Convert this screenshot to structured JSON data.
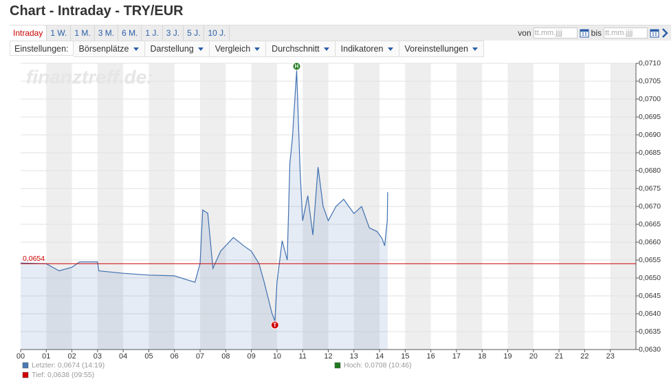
{
  "header": {
    "title": "Chart - Intraday - TRY/EUR"
  },
  "tabs": [
    "Intraday",
    "1 W.",
    "1 M.",
    "3 M.",
    "6 M.",
    "1 J.",
    "3 J.",
    "5 J.",
    "10 J."
  ],
  "date_range": {
    "from_label": "von",
    "from_placeholder": "tt.mm.jjjj",
    "to_label": "bis",
    "to_placeholder": "tt.mm.jjjj"
  },
  "settings": {
    "label": "Einstellungen:",
    "menus": [
      "Börsenplätze",
      "Darstellung",
      "Vergleich",
      "Durchschnitt",
      "Indikatoren",
      "Voreinstellungen"
    ]
  },
  "chart_data": {
    "type": "line",
    "watermark": "finanztreff.de:",
    "x": [
      0,
      1,
      1.5,
      2,
      2.3,
      3,
      3.05,
      4,
      5,
      6,
      6.8,
      7,
      7.1,
      7.3,
      7.5,
      7.8,
      8.3,
      8.7,
      9,
      9.3,
      9.5,
      9.8,
      9.917,
      10,
      10.2,
      10.4,
      10.5,
      10.6,
      10.767,
      10.9,
      11,
      11.2,
      11.4,
      11.6,
      11.8,
      12,
      12.3,
      12.6,
      13,
      13.3,
      13.6,
      13.9,
      14.1,
      14.2,
      14.3,
      14.317
    ],
    "series": [
      {
        "color": "#3f70b0",
        "values": [
          0.06542,
          0.0654,
          0.0652,
          0.0653,
          0.06545,
          0.06545,
          0.0652,
          0.06513,
          0.06508,
          0.06506,
          0.06488,
          0.0654,
          0.0669,
          0.06681,
          0.06527,
          0.06575,
          0.06613,
          0.0659,
          0.06575,
          0.0654,
          0.06488,
          0.06402,
          0.0638,
          0.06488,
          0.06604,
          0.0655,
          0.0682,
          0.0689,
          0.0708,
          0.068,
          0.0666,
          0.0673,
          0.0662,
          0.0681,
          0.067,
          0.0666,
          0.067,
          0.0672,
          0.0668,
          0.067,
          0.0664,
          0.0663,
          0.0661,
          0.0659,
          0.0666,
          0.0674
        ]
      }
    ],
    "xlim": [
      0,
      24
    ],
    "xticks": [
      {
        "value": 0,
        "label": "00"
      },
      {
        "value": 1,
        "label": "01"
      },
      {
        "value": 2,
        "label": "02"
      },
      {
        "value": 3,
        "label": "03"
      },
      {
        "value": 4,
        "label": "04"
      },
      {
        "value": 5,
        "label": "05"
      },
      {
        "value": 6,
        "label": "06"
      },
      {
        "value": 7,
        "label": "07"
      },
      {
        "value": 8,
        "label": "08"
      },
      {
        "value": 9,
        "label": "09"
      },
      10,
      11,
      12,
      13,
      14,
      15,
      16,
      17,
      18,
      19,
      20,
      21,
      22,
      23
    ],
    "ylim": [
      0.063,
      0.071
    ],
    "yticks": [
      {
        "value": 0.063,
        "label": "0,0630"
      },
      {
        "value": 0.0635,
        "label": "0,0635"
      },
      {
        "value": 0.064,
        "label": "0,0640"
      },
      {
        "value": 0.0645,
        "label": "0,0645"
      },
      {
        "value": 0.065,
        "label": "0,0650"
      },
      {
        "value": 0.0655,
        "label": "0,0655"
      },
      {
        "value": 0.066,
        "label": "0,0660"
      },
      {
        "value": 0.0665,
        "label": "0,0665"
      },
      {
        "value": 0.067,
        "label": "0,0670"
      },
      {
        "value": 0.0675,
        "label": "0,0675"
      },
      {
        "value": 0.068,
        "label": "0,0680"
      },
      {
        "value": 0.0685,
        "label": "0,0685"
      },
      {
        "value": 0.069,
        "label": "0,0690"
      },
      {
        "value": 0.0695,
        "label": "0,0695"
      },
      {
        "value": 0.07,
        "label": "0,0700"
      },
      {
        "value": 0.0705,
        "label": "0,0705"
      },
      {
        "value": 0.071,
        "label": "0,0710"
      }
    ],
    "grid": true,
    "reference_line": {
      "value": 0.0654,
      "label": "0,0654",
      "color": "#d00000"
    },
    "markers": [
      {
        "label": "H",
        "x": 10.767,
        "value": 0.0708,
        "color": "#1e7a1e"
      },
      {
        "label": "T",
        "x": 9.917,
        "value": 0.0638,
        "color": "#d00000"
      }
    ],
    "legend": [
      {
        "text": "Letzter: 0,0674 (14:19)",
        "color": "#4a7ab5"
      },
      {
        "text": "Tief: 0,0638 (09:55)",
        "color": "#d00000"
      },
      {
        "text": "Hoch: 0,0708 (10:46)",
        "color": "#1e7a1e"
      }
    ]
  }
}
